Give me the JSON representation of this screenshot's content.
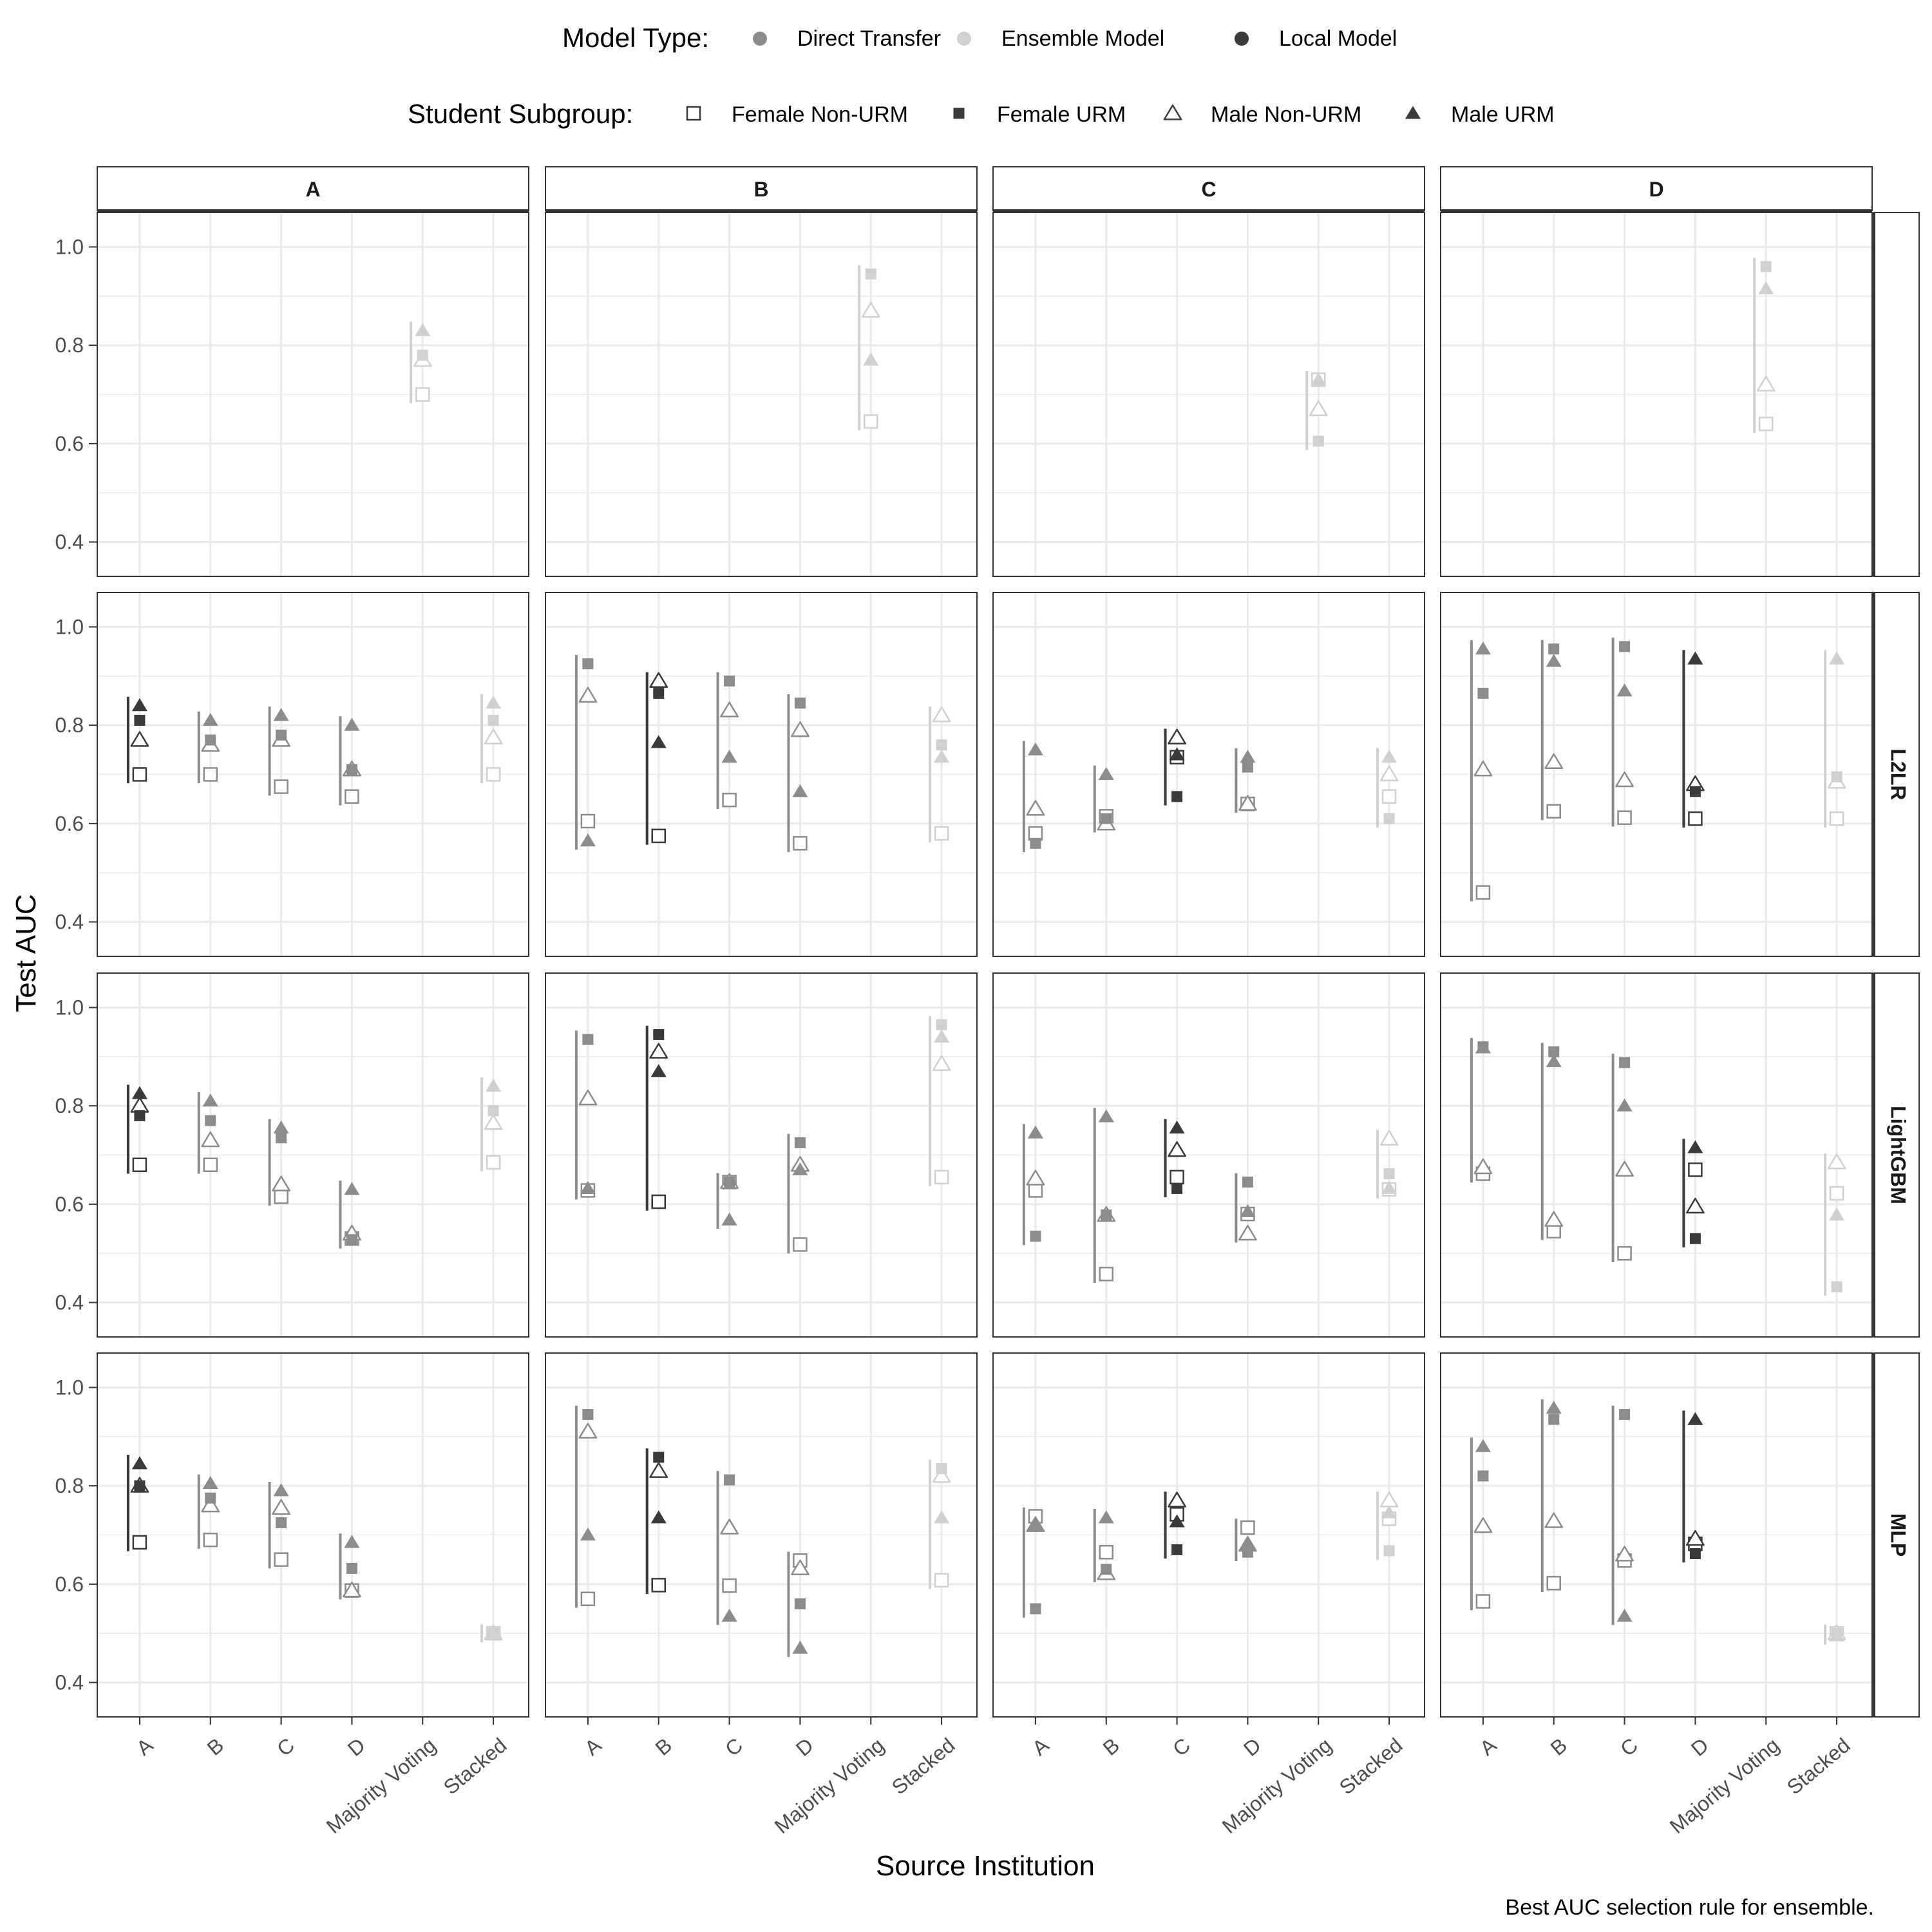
{
  "legend": {
    "model_type_title": "Model Type:",
    "subgroup_title": "Student Subgroup:",
    "model_types": [
      {
        "label": "Direct Transfer",
        "color": "#8c8c8c"
      },
      {
        "label": "Ensemble Model",
        "color": "#d0d0d0"
      },
      {
        "label": "Local Model",
        "color": "#3a3a3a"
      }
    ],
    "subgroups": [
      {
        "label": "Female Non-URM",
        "shape": "square",
        "filled": false
      },
      {
        "label": "Female URM",
        "shape": "square",
        "filled": true
      },
      {
        "label": "Male Non-URM",
        "shape": "triangle",
        "filled": false
      },
      {
        "label": "Male URM",
        "shape": "triangle",
        "filled": true
      }
    ]
  },
  "axes": {
    "x_title": "Source Institution",
    "y_title": "Test AUC"
  },
  "caption": "Best AUC selection rule for ensemble.",
  "chart_data": {
    "type": "scatter",
    "facet_columns": [
      "A",
      "B",
      "C",
      "D"
    ],
    "facet_rows": [
      "",
      "L2LR",
      "LightGBM",
      "MLP"
    ],
    "x_categories": [
      "A",
      "B",
      "C",
      "D",
      "Majority Voting",
      "Stacked"
    ],
    "y_ticks": [
      "0.4",
      "0.6",
      "0.8",
      "1.0"
    ],
    "ylim": [
      0.33,
      1.07
    ],
    "grid": true,
    "series_order": [
      "Female Non-URM",
      "Female URM",
      "Male Non-URM",
      "Male URM"
    ],
    "panels": [
      [
        [
          [
            4,
            "E",
            0.7,
            0.78,
            0.77,
            0.83
          ]
        ],
        [
          [
            4,
            "E",
            0.645,
            0.945,
            0.87,
            0.77
          ]
        ],
        [
          [
            4,
            "E",
            0.73,
            0.605,
            0.67,
            0.73
          ]
        ],
        [
          [
            4,
            "E",
            0.64,
            0.96,
            0.72,
            0.915
          ]
        ]
      ],
      [
        [
          [
            0,
            "L",
            0.7,
            0.81,
            0.77,
            0.84
          ],
          [
            1,
            "D",
            0.7,
            0.77,
            0.76,
            0.81
          ],
          [
            2,
            "D",
            0.675,
            0.78,
            0.77,
            0.82
          ],
          [
            3,
            "D",
            0.655,
            0.71,
            0.71,
            0.8
          ],
          [
            5,
            "E",
            0.7,
            0.81,
            0.775,
            0.845
          ]
        ],
        [
          [
            0,
            "D",
            0.605,
            0.925,
            0.86,
            0.565
          ],
          [
            1,
            "L",
            0.575,
            0.865,
            0.89,
            0.765
          ],
          [
            2,
            "D",
            0.648,
            0.89,
            0.83,
            0.735
          ],
          [
            3,
            "D",
            0.56,
            0.845,
            0.79,
            0.665
          ],
          [
            5,
            "E",
            0.58,
            0.76,
            0.82,
            0.735
          ]
        ],
        [
          [
            0,
            "D",
            0.58,
            0.56,
            0.63,
            0.75
          ],
          [
            1,
            "D",
            0.615,
            0.61,
            0.6,
            0.7
          ],
          [
            2,
            "L",
            0.735,
            0.655,
            0.775,
            0.74
          ],
          [
            3,
            "D",
            0.64,
            0.715,
            0.64,
            0.735
          ],
          [
            5,
            "E",
            0.655,
            0.61,
            0.7,
            0.735
          ]
        ],
        [
          [
            0,
            "D",
            0.46,
            0.865,
            0.71,
            0.955
          ],
          [
            1,
            "D",
            0.625,
            0.955,
            0.725,
            0.93
          ],
          [
            2,
            "D",
            0.612,
            0.96,
            0.688,
            0.87
          ],
          [
            3,
            "L",
            0.61,
            0.665,
            0.68,
            0.935
          ],
          [
            5,
            "E",
            0.61,
            0.695,
            0.685,
            0.935
          ]
        ]
      ],
      [
        [
          [
            0,
            "L",
            0.68,
            0.78,
            0.8,
            0.825
          ],
          [
            1,
            "D",
            0.68,
            0.77,
            0.73,
            0.81
          ],
          [
            2,
            "D",
            0.615,
            0.735,
            0.64,
            0.755
          ],
          [
            3,
            "D",
            0.53,
            0.528,
            0.54,
            0.63
          ],
          [
            5,
            "E",
            0.685,
            0.79,
            0.765,
            0.84
          ]
        ],
        [
          [
            0,
            "D",
            0.628,
            0.935,
            0.815,
            0.632
          ],
          [
            1,
            "L",
            0.605,
            0.945,
            0.91,
            0.87
          ],
          [
            2,
            "D",
            0.645,
            0.645,
            0.645,
            0.568
          ],
          [
            3,
            "D",
            0.518,
            0.725,
            0.68,
            0.67
          ],
          [
            5,
            "E",
            0.655,
            0.965,
            0.885,
            0.94
          ]
        ],
        [
          [
            0,
            "D",
            0.628,
            0.535,
            0.652,
            0.745
          ],
          [
            1,
            "D",
            0.458,
            0.578,
            0.578,
            0.778
          ],
          [
            2,
            "L",
            0.655,
            0.632,
            0.71,
            0.755
          ],
          [
            3,
            "D",
            0.58,
            0.645,
            0.54,
            0.585
          ],
          [
            5,
            "E",
            0.63,
            0.662,
            0.733,
            0.632
          ]
        ],
        [
          [
            0,
            "D",
            0.662,
            0.92,
            0.675,
            0.918
          ],
          [
            1,
            "D",
            0.545,
            0.91,
            0.568,
            0.89
          ],
          [
            2,
            "D",
            0.5,
            0.888,
            0.67,
            0.8
          ],
          [
            3,
            "L",
            0.67,
            0.53,
            0.595,
            0.715
          ],
          [
            5,
            "E",
            0.622,
            0.432,
            0.685,
            0.578
          ]
        ]
      ],
      [
        [
          [
            0,
            "L",
            0.685,
            0.8,
            0.8,
            0.845
          ],
          [
            1,
            "D",
            0.69,
            0.775,
            0.76,
            0.805
          ],
          [
            2,
            "D",
            0.65,
            0.725,
            0.755,
            0.79
          ],
          [
            3,
            "D",
            0.587,
            0.632,
            0.587,
            0.685
          ],
          [
            5,
            "E",
            0.5,
            0.5,
            0.5,
            0.5
          ]
        ],
        [
          [
            0,
            "D",
            0.57,
            0.945,
            0.91,
            0.7
          ],
          [
            1,
            "L",
            0.598,
            0.858,
            0.83,
            0.735
          ],
          [
            2,
            "D",
            0.597,
            0.812,
            0.715,
            0.535
          ],
          [
            3,
            "D",
            0.648,
            0.56,
            0.632,
            0.47
          ],
          [
            5,
            "E",
            0.608,
            0.835,
            0.82,
            0.735
          ]
        ],
        [
          [
            0,
            "D",
            0.738,
            0.55,
            0.72,
            0.72
          ],
          [
            1,
            "D",
            0.665,
            0.63,
            0.622,
            0.735
          ],
          [
            2,
            "L",
            0.742,
            0.67,
            0.77,
            0.727
          ],
          [
            3,
            "D",
            0.715,
            0.665,
            0.68,
            0.68
          ],
          [
            5,
            "E",
            0.733,
            0.668,
            0.77,
            0.745
          ]
        ],
        [
          [
            0,
            "D",
            0.565,
            0.82,
            0.718,
            0.88
          ],
          [
            1,
            "D",
            0.602,
            0.935,
            0.728,
            0.958
          ],
          [
            2,
            "D",
            0.648,
            0.945,
            0.66,
            0.535
          ],
          [
            3,
            "L",
            0.682,
            0.662,
            0.692,
            0.935
          ],
          [
            5,
            "E",
            0.5,
            0.5,
            0.5,
            0.495
          ]
        ]
      ]
    ]
  }
}
